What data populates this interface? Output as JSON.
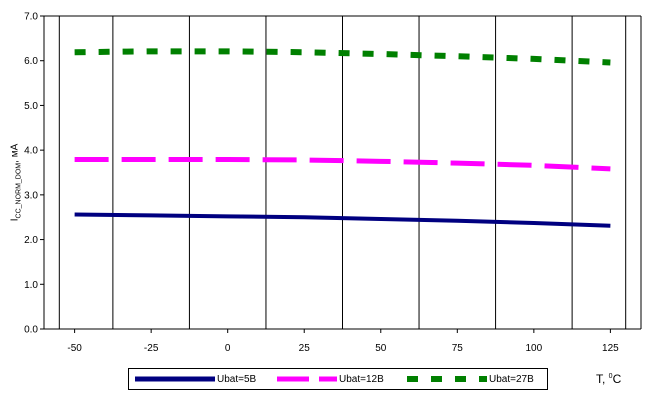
{
  "chart_data": {
    "type": "line",
    "x": [
      -50,
      -25,
      0,
      25,
      50,
      75,
      100,
      125
    ],
    "x_ticks": [
      "-50",
      "-25",
      "0",
      "25",
      "50",
      "75",
      "100",
      "125"
    ],
    "y_ticks": [
      "0.0",
      "1.0",
      "2.0",
      "3.0",
      "4.0",
      "5.0",
      "6.0",
      "7.0"
    ],
    "xlim": [
      -60,
      135
    ],
    "ylim": [
      0,
      7
    ],
    "grid": "vertical",
    "legend_position": "bottom",
    "ylabel_main": "I",
    "ylabel_sub": "CC_NORM_DOM",
    "ylabel_unit": ", мА",
    "xlabel_main": "T, ",
    "xlabel_sup": "0",
    "xlabel_unit": "C",
    "series": [
      {
        "name": "Ubat=5В",
        "color": "#000080",
        "style": "solid",
        "values": [
          2.56,
          2.54,
          2.52,
          2.5,
          2.46,
          2.42,
          2.37,
          2.31
        ]
      },
      {
        "name": "Ubat=12В",
        "color": "#ff00ff",
        "style": "dashed",
        "values": [
          3.79,
          3.79,
          3.79,
          3.78,
          3.75,
          3.71,
          3.66,
          3.58
        ]
      },
      {
        "name": "Ubat=27В",
        "color": "#008000",
        "style": "dotted",
        "values": [
          6.19,
          6.21,
          6.21,
          6.19,
          6.15,
          6.1,
          6.04,
          5.96
        ]
      }
    ]
  }
}
